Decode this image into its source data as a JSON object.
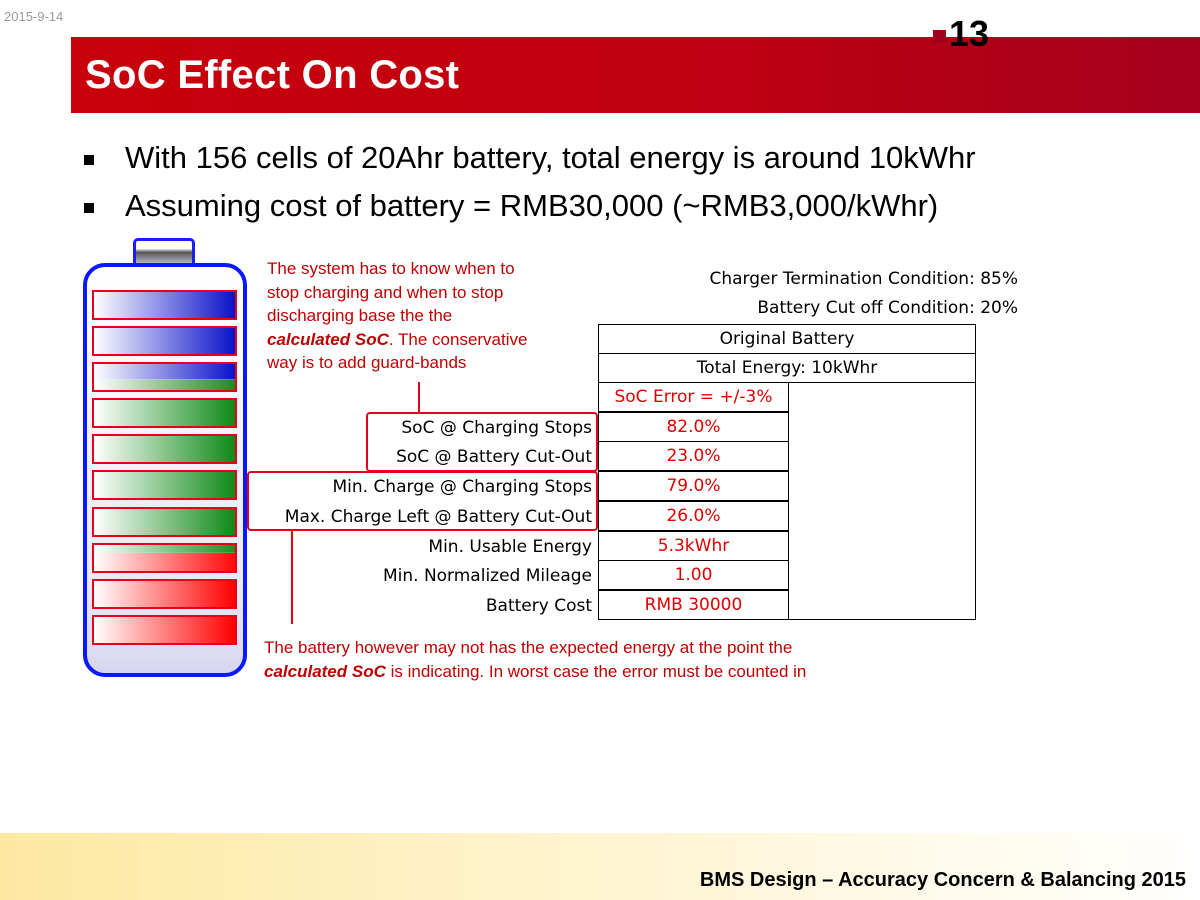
{
  "slide": {
    "date": "2015-9-14",
    "page_number": "13",
    "title": "SoC Effect On Cost",
    "bullets": [
      "With 156 cells of 20Ahr battery, total energy is around 10kWhr",
      "Assuming cost of battery = RMB30,000 (~RMB3,000/kWhr)"
    ],
    "footer": "BMS Design – Accuracy Concern & Balancing 2015"
  },
  "notes": {
    "top_line1": "The system has to know when to",
    "top_line2": "stop charging and when to stop",
    "top_line3": "discharging base the the",
    "top_line4_em": "calculated SoC",
    "top_line4_rest": ". The conservative",
    "top_line5": "way is to add guard-bands",
    "bottom_line1": "The battery however may not has the expected energy at the point the",
    "bottom_line2_em": "calculated SoC",
    "bottom_line2_rest": " is indicating. In worst case the error must be counted in"
  },
  "table": {
    "charger_termination": "Charger Termination Condition: 85%",
    "battery_cutoff": "Battery Cut off Condition: 20%",
    "header1": "Original Battery",
    "header2": "Total Energy: 10kWhr",
    "soc_error": "SoC Error = +/-3%",
    "rows": [
      {
        "label": "SoC @ Charging Stops",
        "value": "82.0%"
      },
      {
        "label": "SoC @ Battery Cut-Out",
        "value": "23.0%"
      },
      {
        "label": "Min. Charge @ Charging Stops",
        "value": "79.0%"
      },
      {
        "label": "Max. Charge Left @ Battery Cut-Out",
        "value": "26.0%"
      },
      {
        "label": "Min. Usable Energy",
        "value": "5.3kWhr"
      },
      {
        "label": "Min. Normalized Mileage",
        "value": "1.00"
      },
      {
        "label": "Battery Cost",
        "value": "RMB 30000"
      }
    ]
  },
  "colors": {
    "title_bar": "#c8000a",
    "accent_red": "#e00000",
    "battery_outline": "#0a18ff"
  }
}
